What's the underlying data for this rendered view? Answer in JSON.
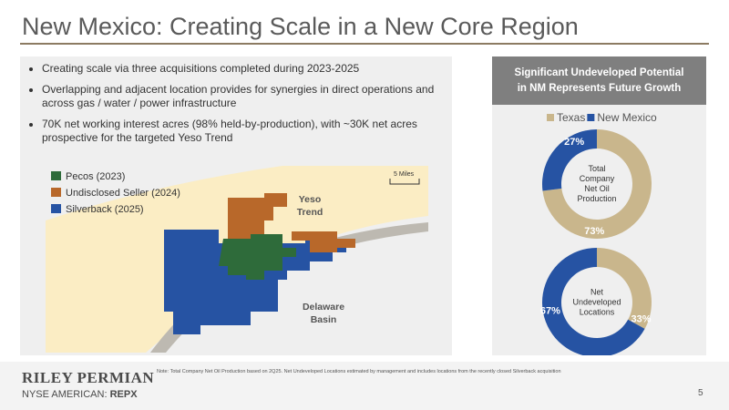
{
  "header": {
    "title": "New Mexico: Creating Scale in a New Core Region"
  },
  "bullets": [
    "Creating scale via three acquisitions completed during 2023-2025",
    "Overlapping and adjacent location provides for synergies in direct operations and across gas / water / power infrastructure",
    "70K net working interest acres (98% held-by-production), with ~30K net acres prospective for the targeted Yeso Trend"
  ],
  "map": {
    "legend": [
      "Pecos (2023)",
      "Undisclosed Seller (2024)",
      "Silverback (2025)"
    ],
    "scale": "5 Miles",
    "labels": [
      "Yeso Trend",
      "Delaware Basin"
    ]
  },
  "panel_title": "Significant Undeveloped Potential in NM Represents Future Growth",
  "chart_data": [
    {
      "type": "pie",
      "title": [
        "Total",
        "Company",
        "Net Oil",
        "Production"
      ],
      "categories": [
        "Texas",
        "New Mexico"
      ],
      "values": [
        73,
        27
      ],
      "value_labels": [
        "73%",
        "27%"
      ],
      "colors": [
        "#c9b68c",
        "#2653a3"
      ]
    },
    {
      "type": "pie",
      "title": [
        "Net",
        "Undeveloped",
        "Locations"
      ],
      "categories": [
        "Texas",
        "New Mexico"
      ],
      "values": [
        33,
        67
      ],
      "value_labels": [
        "33%",
        "67%"
      ],
      "colors": [
        "#c9b68c",
        "#2653a3"
      ]
    }
  ],
  "footer": {
    "note": "Note: Total Company Net Oil Production based on 2Q25. Net Undeveloped Locations estimated by management and includes locations from the recently closed Silverback acquisition",
    "logo": "RILEY PERMIAN",
    "exchange": "NYSE AMERICAN:",
    "ticker": "REPX",
    "page": "5"
  }
}
